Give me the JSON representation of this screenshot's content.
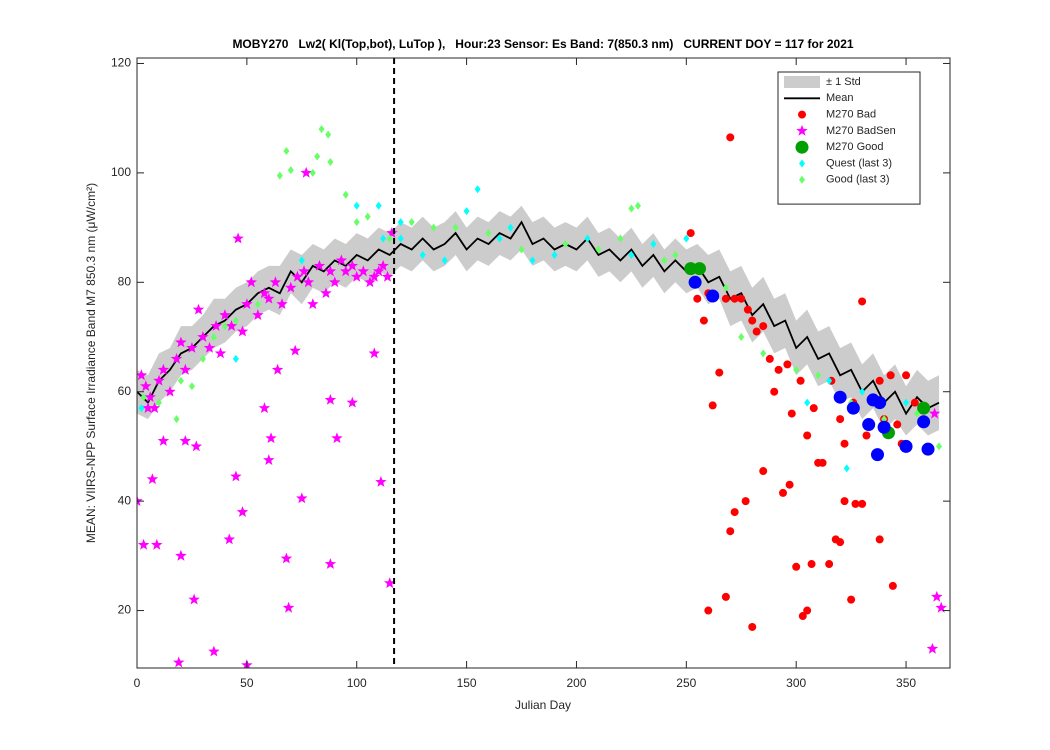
{
  "chart_data": {
    "type": "scatter",
    "title": "MOBY270   Lw2( Kl(Top,bot), LuTop ),   Hour:23 Sensor: Es Band: 7(850.3 nm)   CURRENT DOY = 117 for 2021",
    "xlabel": "Julian Day",
    "ylabel": "MEAN: VIIRS-NPP Surface Irradiance Band M7 850.3 nm (μW/cm²)",
    "xlim": [
      0,
      370
    ],
    "ylim": [
      9.5,
      121
    ],
    "xticks": [
      0,
      50,
      100,
      150,
      200,
      250,
      300,
      350
    ],
    "yticks": [
      20,
      40,
      60,
      80,
      100,
      120
    ],
    "legend": "upper right",
    "current_doy": 117,
    "x": [
      0,
      5,
      10,
      15,
      20,
      25,
      30,
      35,
      40,
      45,
      50,
      55,
      60,
      65,
      70,
      75,
      80,
      85,
      90,
      95,
      100,
      105,
      110,
      115,
      120,
      125,
      130,
      135,
      140,
      145,
      150,
      155,
      160,
      165,
      170,
      175,
      180,
      185,
      190,
      195,
      200,
      205,
      210,
      215,
      220,
      225,
      230,
      235,
      240,
      245,
      250,
      255,
      260,
      265,
      270,
      275,
      280,
      285,
      290,
      295,
      300,
      305,
      310,
      315,
      320,
      325,
      330,
      335,
      340,
      345,
      350,
      355,
      360,
      365
    ],
    "band": {
      "name": "± 1 Std",
      "color": "#cccccc",
      "upper": [
        64,
        63,
        67,
        68,
        72,
        72,
        74,
        77,
        77,
        79,
        80,
        82,
        83,
        83,
        86,
        85,
        87,
        86,
        88,
        87,
        89,
        88,
        90,
        89,
        91,
        90,
        92,
        90,
        91,
        93,
        90,
        92,
        91,
        93,
        92,
        94,
        91,
        92,
        90,
        91,
        90,
        92,
        89,
        90,
        88,
        90,
        87,
        89,
        86,
        88,
        86,
        87,
        85,
        86,
        82,
        83,
        79,
        81,
        77,
        78,
        73,
        75,
        71,
        72,
        68,
        69,
        65,
        67,
        63,
        65,
        61,
        64,
        62,
        63
      ],
      "lower": [
        56,
        55,
        58,
        60,
        63,
        64,
        66,
        68,
        69,
        71,
        72,
        74,
        75,
        74,
        78,
        76,
        79,
        78,
        80,
        79,
        81,
        80,
        82,
        81,
        83,
        82,
        84,
        82,
        83,
        85,
        82,
        84,
        83,
        85,
        84,
        86,
        83,
        84,
        82,
        83,
        82,
        84,
        81,
        82,
        80,
        82,
        79,
        81,
        78,
        80,
        78,
        79,
        76,
        77,
        72,
        73,
        69,
        71,
        67,
        68,
        63,
        65,
        61,
        62,
        58,
        59,
        55,
        57,
        53,
        55,
        52,
        54,
        52,
        53
      ]
    },
    "mean": {
      "name": "Mean",
      "color": "#000000",
      "values": [
        60,
        58,
        62,
        64,
        67,
        68,
        70,
        72,
        73,
        75,
        76,
        78,
        79,
        78,
        82,
        80,
        83,
        82,
        84,
        83,
        85,
        84,
        86,
        85,
        87,
        86,
        88,
        86,
        87,
        89,
        86,
        88,
        87,
        89,
        88,
        91,
        87,
        88,
        86,
        87,
        86,
        88,
        85,
        86,
        84,
        86,
        83,
        85,
        82,
        84,
        82,
        83,
        80,
        81,
        77,
        78,
        74,
        76,
        72,
        73,
        68,
        70,
        66,
        67,
        63,
        64,
        60,
        62,
        58,
        60,
        56,
        59,
        57,
        58
      ]
    },
    "series": [
      {
        "name": "M270 Bad",
        "color": "#ff0000",
        "marker": "circle",
        "x": [
          252,
          254,
          255,
          258,
          260,
          262,
          265,
          268,
          270,
          272,
          275,
          278,
          280,
          282,
          285,
          288,
          290,
          292,
          296,
          298,
          302,
          305,
          308,
          312,
          316,
          320,
          326,
          330,
          332,
          338,
          340,
          343,
          346,
          350,
          354,
          260,
          268,
          270,
          272,
          277,
          280,
          285,
          294,
          297,
          300,
          303,
          305,
          307,
          310,
          315,
          318,
          320,
          322,
          325,
          327,
          330,
          338,
          344,
          348,
          322
        ],
        "values": [
          89,
          80,
          77,
          73,
          78,
          57.5,
          63.5,
          77,
          106.5,
          77,
          77,
          75,
          73,
          71,
          72,
          66,
          60,
          64,
          65,
          56,
          62,
          52,
          57,
          47,
          62,
          55,
          58,
          76.5,
          52,
          62,
          55,
          63,
          54,
          63,
          58,
          20,
          22.5,
          34.5,
          38,
          40,
          17,
          45.5,
          41.5,
          43,
          28,
          19,
          20,
          28.5,
          47,
          28.5,
          33,
          32.5,
          40,
          22,
          39.5,
          39.5,
          33,
          24.5,
          50.5,
          50.5
        ]
      },
      {
        "name": "M270 BadSen",
        "color": "#ff00ff",
        "marker": "star",
        "x": [
          2,
          4,
          6,
          8,
          10,
          12,
          15,
          18,
          20,
          22,
          25,
          28,
          30,
          33,
          36,
          38,
          40,
          43,
          46,
          48,
          50,
          52,
          55,
          58,
          60,
          63,
          66,
          70,
          73,
          76,
          78,
          80,
          83,
          86,
          88,
          90,
          93,
          95,
          98,
          100,
          103,
          106,
          108,
          110,
          112,
          114,
          116,
          77,
          0,
          3,
          7,
          9,
          5,
          12,
          19,
          20,
          22,
          26,
          27,
          35,
          42,
          45,
          48,
          50,
          58,
          60,
          61,
          64,
          68,
          69,
          72,
          75,
          88,
          88,
          91,
          98,
          108,
          111,
          115,
          362,
          364,
          366,
          358,
          363
        ],
        "values": [
          63,
          61,
          59,
          57,
          62,
          64,
          60,
          66,
          69,
          64,
          68,
          75,
          70,
          68,
          72,
          67,
          74,
          72,
          88,
          71,
          76,
          80,
          74,
          78,
          77,
          80,
          76,
          79,
          81,
          82,
          80,
          76,
          83,
          78,
          82,
          80,
          84,
          82,
          83,
          81,
          82,
          80,
          81,
          82,
          83,
          81,
          89,
          100,
          40,
          32,
          44,
          32,
          57,
          51,
          10.5,
          30,
          51,
          22,
          50,
          12.5,
          33,
          44.5,
          38,
          10,
          57,
          47.5,
          51.5,
          64,
          29.5,
          20.5,
          67.5,
          40.5,
          58.5,
          28.5,
          51.5,
          58,
          67,
          43.5,
          25,
          13,
          22.5,
          20.5,
          54.5,
          56
        ]
      },
      {
        "name": "M270 Good",
        "color": "#00a000",
        "marker": "circle-large",
        "x": [
          252,
          256,
          342,
          358
        ],
        "values": [
          82.5,
          82.5,
          52.5,
          57
        ]
      },
      {
        "name": "Quest (last 3)",
        "color": "#00ffff",
        "marker": "diamond",
        "x": [
          2,
          45,
          75,
          100,
          110,
          112,
          120,
          130,
          155,
          150,
          165,
          180,
          205,
          225,
          235,
          250,
          305,
          315,
          323,
          330,
          350,
          120,
          140,
          170,
          190
        ],
        "values": [
          57,
          66,
          84,
          94,
          94,
          88,
          88,
          85,
          97,
          93,
          88,
          84,
          88,
          85,
          87,
          88,
          58,
          62,
          46,
          60,
          58,
          91,
          84,
          90,
          85
        ]
      },
      {
        "name": "Good (last 3)",
        "color": "#66ff66",
        "marker": "diamond",
        "x": [
          3,
          10,
          18,
          20,
          25,
          30,
          35,
          40,
          45,
          55,
          65,
          68,
          70,
          80,
          82,
          84,
          87,
          88,
          95,
          100,
          105,
          115,
          125,
          135,
          145,
          160,
          175,
          195,
          210,
          220,
          225,
          228,
          240,
          245,
          252,
          268,
          275,
          285,
          300,
          310,
          325,
          340,
          355,
          365
        ],
        "values": [
          59,
          58,
          55,
          62,
          61,
          66,
          70,
          72,
          73,
          76,
          99.5,
          104,
          100.5,
          100,
          103,
          108,
          107,
          102,
          96,
          91,
          92,
          88,
          91,
          90,
          90,
          89,
          86,
          87,
          86,
          88,
          93.5,
          94,
          84,
          85,
          80,
          79,
          70,
          67,
          64,
          63,
          58,
          55,
          56,
          50
        ]
      },
      {
        "color": "#0000ff",
        "marker": "circle-large",
        "x": [
          254,
          262,
          320,
          326,
          333,
          335,
          337,
          338,
          340,
          350,
          358,
          360
        ],
        "values": [
          80,
          77.5,
          59,
          57,
          54,
          58.5,
          48.5,
          58,
          53.5,
          50,
          54.5,
          49.5
        ]
      }
    ]
  }
}
